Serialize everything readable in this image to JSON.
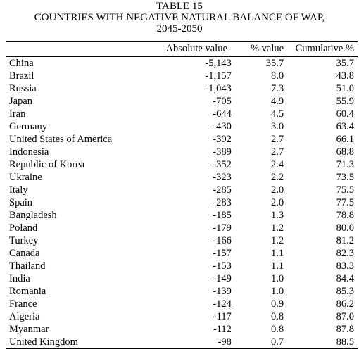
{
  "caption": {
    "line1": "TABLE 15",
    "line2": "COUNTRIES WITH NEGATIVE NATURAL BALANCE OF WAP,",
    "line3": "2045-2050"
  },
  "table": {
    "headers": [
      "",
      "Absolute value",
      "% value",
      "Cumulative %"
    ],
    "rows": [
      [
        "China",
        "-5,143",
        "35.7",
        "35.7"
      ],
      [
        "Brazil",
        "-1,157",
        "8.0",
        "43.8"
      ],
      [
        "Russia",
        "-1,043",
        "7.3",
        "51.0"
      ],
      [
        "Japan",
        "-705",
        "4.9",
        "55.9"
      ],
      [
        "Iran",
        "-644",
        "4.5",
        "60.4"
      ],
      [
        "Germany",
        "-430",
        "3.0",
        "63.4"
      ],
      [
        "United States of America",
        "-392",
        "2.7",
        "66.1"
      ],
      [
        "Indonesia",
        "-389",
        "2.7",
        "68.8"
      ],
      [
        "Republic of Korea",
        "-352",
        "2.4",
        "71.3"
      ],
      [
        "Ukraine",
        "-323",
        "2.2",
        "73.5"
      ],
      [
        "Italy",
        "-285",
        "2.0",
        "75.5"
      ],
      [
        "Spain",
        "-283",
        "2.0",
        "77.5"
      ],
      [
        "Bangladesh",
        "-185",
        "1.3",
        "78.8"
      ],
      [
        "Poland",
        "-179",
        "1.2",
        "80.0"
      ],
      [
        "Turkey",
        "-166",
        "1.2",
        "81.2"
      ],
      [
        "Canada",
        "-157",
        "1.1",
        "82.3"
      ],
      [
        "Thailand",
        "-153",
        "1.1",
        "83.3"
      ],
      [
        "India",
        "-149",
        "1.0",
        "84.4"
      ],
      [
        "Romania",
        "-139",
        "1.0",
        "85.3"
      ],
      [
        "France",
        "-124",
        "0.9",
        "86.2"
      ],
      [
        "Algeria",
        "-117",
        "0.8",
        "87.0"
      ],
      [
        "Myanmar",
        "-112",
        "0.8",
        "87.8"
      ],
      [
        "United Kingdom",
        "-98",
        "0.7",
        "88.5"
      ]
    ]
  }
}
